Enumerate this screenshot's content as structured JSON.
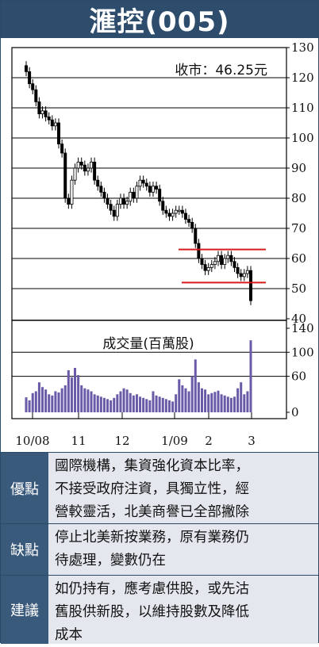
{
  "title": "滙控(005)",
  "price_label": "收市：46.25元",
  "volume_label": "成交量(百萬股)",
  "colors": {
    "header_bg": "#2e4c6c",
    "label_bg": "#3a5a7c",
    "bar_fill": "#6b5aa8",
    "support": "#d81c1c"
  },
  "chart_data": {
    "type": "candlestick",
    "price_axis": {
      "ticks": [
        130,
        120,
        110,
        100,
        90,
        80,
        70,
        60,
        50,
        40
      ],
      "range": [
        40,
        130
      ]
    },
    "volume_axis": {
      "ticks": [
        140,
        100,
        60,
        0
      ],
      "range": [
        0,
        140
      ]
    },
    "x_labels": [
      "10/08",
      "11",
      "12",
      "1/09",
      "2",
      "3"
    ],
    "close_last": 46.25,
    "support_lines": [
      63,
      52
    ],
    "price_series": [
      122,
      118,
      116,
      112,
      108,
      109,
      107,
      106,
      104,
      105,
      98,
      95,
      80,
      78,
      86,
      90,
      92,
      91,
      89,
      90,
      92,
      86,
      84,
      82,
      80,
      78,
      76,
      74,
      78,
      80,
      78,
      79,
      82,
      80,
      84,
      86,
      85,
      84,
      82,
      84,
      83,
      79,
      76,
      75,
      74,
      75,
      76,
      76,
      75,
      73,
      72,
      70,
      65,
      60,
      58,
      56,
      57,
      58,
      59,
      61,
      58,
      60,
      61,
      59,
      57,
      55,
      54,
      55,
      56,
      46
    ],
    "volume_series": [
      25,
      20,
      32,
      35,
      50,
      42,
      38,
      30,
      28,
      35,
      33,
      40,
      45,
      70,
      58,
      74,
      62,
      45,
      40,
      38,
      35,
      30,
      28,
      26,
      24,
      22,
      20,
      24,
      30,
      35,
      40,
      38,
      32,
      28,
      30,
      26,
      24,
      22,
      20,
      35,
      28,
      26,
      24,
      22,
      20,
      18,
      30,
      55,
      45,
      40,
      35,
      60,
      88,
      50,
      40,
      38,
      30,
      32,
      34,
      36,
      30,
      28,
      26,
      24,
      26,
      40,
      50,
      30,
      35,
      120
    ]
  },
  "rows": [
    {
      "label": "優點",
      "lines": [
        "國際機構，集資強化資本比率，",
        "不接受政府注資，具獨立性，經",
        "營較靈活，北美商譽已全部撇除"
      ]
    },
    {
      "label": "缺點",
      "lines": [
        "停止北美新按業務，原有業務仍",
        "待處理，變數仍在"
      ]
    },
    {
      "label": "建議",
      "lines": [
        "如仍持有，應考慮供股，或先沽",
        "舊股供新股，以維持股數及降低",
        "成本"
      ]
    }
  ]
}
